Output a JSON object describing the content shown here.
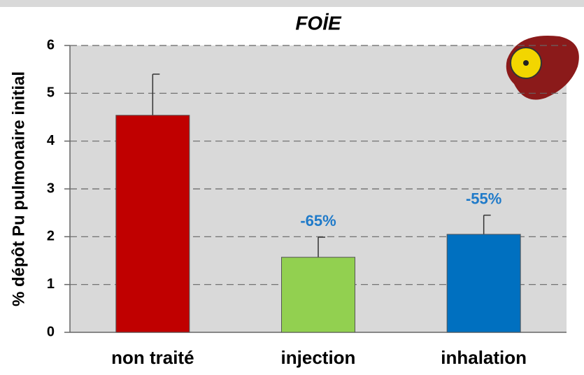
{
  "chart_data": {
    "type": "bar",
    "title": "FOİE",
    "y_label": "% dépôt Pu pulmonaire initial",
    "categories": [
      "non traité",
      "injection",
      "inhalation"
    ],
    "values": [
      4.54,
      1.57,
      2.05
    ],
    "errors": [
      0.86,
      0.42,
      0.4
    ],
    "colors": [
      "#c00000",
      "#92d050",
      "#0070c0"
    ],
    "annotations": [
      null,
      "-65%",
      "-55%"
    ],
    "annotation_color": "#1f7ac9",
    "ylim": [
      0,
      6
    ],
    "yticks": [
      0,
      1,
      2,
      3,
      4,
      5,
      6
    ],
    "grid": true
  }
}
